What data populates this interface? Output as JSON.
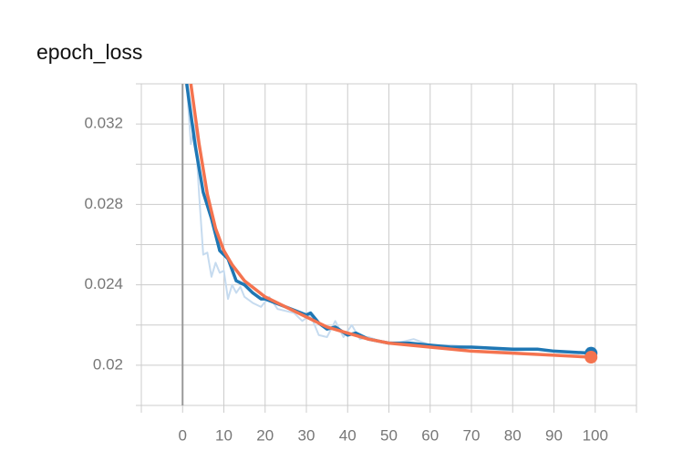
{
  "chart_data": {
    "type": "line",
    "title": "epoch_loss",
    "xlim": [
      -10,
      110
    ],
    "xticks": [
      0,
      10,
      20,
      30,
      40,
      50,
      60,
      70,
      80,
      90,
      100
    ],
    "xgrid": [
      -10,
      0,
      10,
      20,
      30,
      40,
      50,
      60,
      70,
      80,
      90,
      100,
      110
    ],
    "ylim": [
      0.018,
      0.034
    ],
    "yticks": [
      0.02,
      0.024,
      0.028,
      0.032
    ],
    "yminor": [
      0.018,
      0.022,
      0.026,
      0.03,
      0.034
    ],
    "grid": true,
    "series": [
      {
        "color": "#c6dbef",
        "width": 2,
        "x": [
          1,
          2,
          3,
          4,
          5,
          6,
          7,
          8,
          9,
          10,
          11,
          12,
          13,
          14,
          15,
          17,
          19,
          21,
          23,
          25,
          27,
          29,
          31,
          33,
          35,
          37,
          39,
          41,
          43,
          45,
          48,
          52,
          56,
          60,
          65,
          70,
          75,
          80,
          85,
          90,
          95,
          99
        ],
        "values": [
          0.034,
          0.031,
          0.032,
          0.0285,
          0.0255,
          0.0256,
          0.0244,
          0.0251,
          0.0246,
          0.0247,
          0.0233,
          0.024,
          0.0236,
          0.0239,
          0.0234,
          0.0231,
          0.0229,
          0.0234,
          0.0228,
          0.0227,
          0.0226,
          0.0222,
          0.0225,
          0.0215,
          0.0214,
          0.0222,
          0.0214,
          0.022,
          0.0213,
          0.0214,
          0.0212,
          0.0211,
          0.0213,
          0.021,
          0.021,
          0.0209,
          0.0208,
          0.0207,
          0.0208,
          0.0207,
          0.0206,
          0.0206
        ]
      },
      {
        "color": "#1f77b4",
        "width": 3.5,
        "marker": true,
        "x": [
          1,
          3,
          5,
          7,
          9,
          11,
          13,
          15,
          17,
          19,
          20,
          25,
          30,
          31,
          33,
          35,
          37,
          40,
          42,
          45,
          50,
          55,
          60,
          65,
          70,
          80,
          86,
          90,
          99
        ],
        "values": [
          0.034,
          0.031,
          0.0286,
          0.0273,
          0.0257,
          0.0253,
          0.0242,
          0.024,
          0.0236,
          0.0233,
          0.0233,
          0.0229,
          0.0225,
          0.0226,
          0.0221,
          0.0218,
          0.0219,
          0.0215,
          0.0216,
          0.0213,
          0.0211,
          0.0211,
          0.021,
          0.0209,
          0.0209,
          0.0208,
          0.0208,
          0.0207,
          0.0206
        ]
      },
      {
        "color": "#f4734f",
        "width": 3.5,
        "marker": true,
        "x": [
          2,
          4,
          6,
          8,
          10,
          12,
          15,
          20,
          25,
          30,
          35,
          40,
          45,
          50,
          60,
          70,
          80,
          90,
          99
        ],
        "values": [
          0.034,
          0.031,
          0.0285,
          0.0268,
          0.0257,
          0.025,
          0.0242,
          0.0234,
          0.0229,
          0.0224,
          0.0219,
          0.0216,
          0.0213,
          0.0211,
          0.0209,
          0.0207,
          0.0206,
          0.0205,
          0.0204
        ]
      }
    ]
  }
}
